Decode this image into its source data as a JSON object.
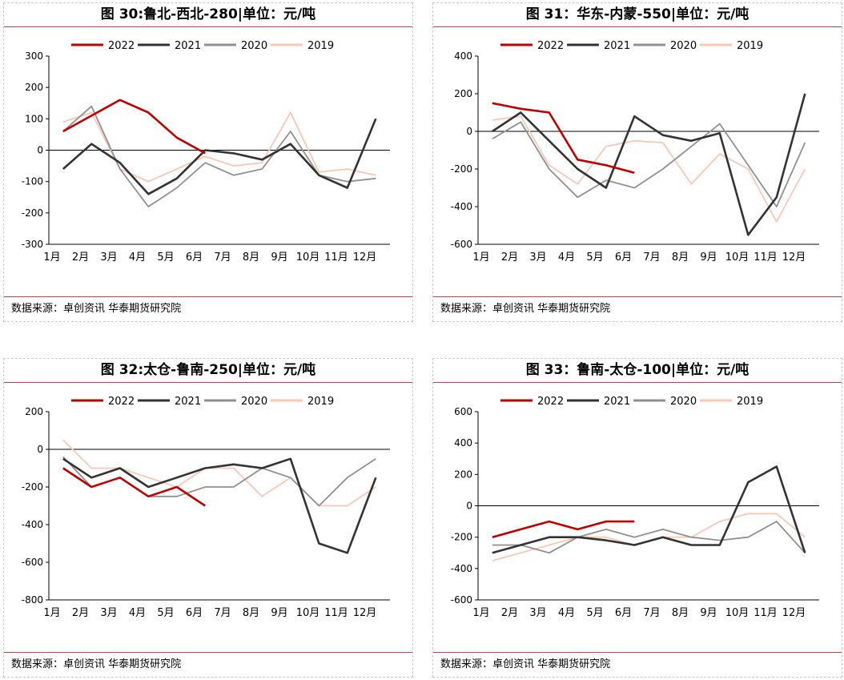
{
  "colors": {
    "2022": "#c00000",
    "2021": "#333333",
    "2020": "#909090",
    "2019": "#f8c8b4"
  },
  "months": [
    "1月",
    "2月",
    "3月",
    "4月",
    "5月",
    "6月",
    "7月",
    "8月",
    "9月",
    "10月",
    "11月",
    "12月"
  ],
  "panels": [
    {
      "title": "图 30:鲁北-西北-280|单位：元/吨",
      "source": "数据来源：卓创资讯  华泰期货研究院",
      "chart_data": {
        "type": "line",
        "x": [
          "1月",
          "2月",
          "3月",
          "4月",
          "5月",
          "6月",
          "7月",
          "8月",
          "9月",
          "10月",
          "11月",
          "12月"
        ],
        "ylim": [
          -300,
          300
        ],
        "yticks": [
          -300,
          -200,
          -100,
          0,
          100,
          200,
          300
        ],
        "series": [
          {
            "name": "2022",
            "values": [
              60,
              110,
              160,
              120,
              40,
              -10,
              null,
              null,
              null,
              null,
              null,
              null
            ]
          },
          {
            "name": "2021",
            "values": [
              -60,
              20,
              -40,
              -140,
              -90,
              0,
              -10,
              -30,
              20,
              -80,
              -120,
              100
            ]
          },
          {
            "name": "2020",
            "values": [
              60,
              140,
              -60,
              -180,
              -120,
              -40,
              -80,
              -60,
              60,
              -80,
              -100,
              -90
            ]
          },
          {
            "name": "2019",
            "values": [
              90,
              120,
              -60,
              -100,
              -60,
              -20,
              -50,
              -40,
              120,
              -70,
              -60,
              -80
            ]
          }
        ]
      }
    },
    {
      "title": "图 31：华东-内蒙-550|单位：元/吨",
      "source": "数据来源：卓创资讯  华泰期货研究院",
      "chart_data": {
        "type": "line",
        "x": [
          "1月",
          "2月",
          "3月",
          "4月",
          "5月",
          "6月",
          "7月",
          "8月",
          "9月",
          "10月",
          "11月",
          "12月"
        ],
        "ylim": [
          -600,
          400
        ],
        "yticks": [
          -600,
          -400,
          -200,
          0,
          200,
          400
        ],
        "series": [
          {
            "name": "2022",
            "values": [
              150,
              120,
              100,
              -150,
              -180,
              -220,
              null,
              null,
              null,
              null,
              null,
              null
            ]
          },
          {
            "name": "2021",
            "values": [
              0,
              100,
              -50,
              -200,
              -300,
              80,
              -20,
              -50,
              -10,
              -550,
              -350,
              200
            ]
          },
          {
            "name": "2020",
            "values": [
              -40,
              50,
              -200,
              -350,
              -260,
              -300,
              -200,
              -80,
              40,
              -180,
              -400,
              -60
            ]
          },
          {
            "name": "2019",
            "values": [
              60,
              80,
              -180,
              -280,
              -80,
              -50,
              -60,
              -280,
              -120,
              -200,
              -480,
              -200
            ]
          }
        ]
      }
    },
    {
      "title": "图 32:太仓-鲁南-250|单位：元/吨",
      "source": "数据来源：卓创资讯  华泰期货研究院",
      "chart_data": {
        "type": "line",
        "x": [
          "1月",
          "2月",
          "3月",
          "4月",
          "5月",
          "6月",
          "7月",
          "8月",
          "9月",
          "10月",
          "11月",
          "12月"
        ],
        "ylim": [
          -800,
          200
        ],
        "yticks": [
          -800,
          -600,
          -400,
          -200,
          0,
          200
        ],
        "series": [
          {
            "name": "2022",
            "values": [
              -100,
              -200,
              -150,
              -250,
              -200,
              -300,
              null,
              null,
              null,
              null,
              null,
              null
            ]
          },
          {
            "name": "2021",
            "values": [
              -50,
              -150,
              -100,
              -200,
              -150,
              -100,
              -80,
              -100,
              -50,
              -500,
              -550,
              -150
            ]
          },
          {
            "name": "2020",
            "values": [
              -40,
              -200,
              -150,
              -250,
              -250,
              -200,
              -200,
              -100,
              -150,
              -300,
              -150,
              -50
            ]
          },
          {
            "name": "2019",
            "values": [
              50,
              -100,
              -100,
              -150,
              -200,
              -100,
              -100,
              -250,
              -150,
              -300,
              -300,
              -200
            ]
          }
        ]
      }
    },
    {
      "title": "图 33：鲁南-太仓-100|单位：元/吨",
      "source": "数据来源：卓创资讯  华泰期货研究院",
      "chart_data": {
        "type": "line",
        "x": [
          "1月",
          "2月",
          "3月",
          "4月",
          "5月",
          "6月",
          "7月",
          "8月",
          "9月",
          "10月",
          "11月",
          "12月"
        ],
        "ylim": [
          -600,
          600
        ],
        "yticks": [
          -600,
          -400,
          -200,
          0,
          200,
          400,
          600
        ],
        "series": [
          {
            "name": "2022",
            "values": [
              -200,
              -150,
              -100,
              -150,
              -100,
              -100,
              null,
              null,
              null,
              null,
              null,
              null
            ]
          },
          {
            "name": "2021",
            "values": [
              -300,
              -250,
              -200,
              -200,
              -220,
              -250,
              -200,
              -250,
              -250,
              150,
              250,
              -300
            ]
          },
          {
            "name": "2020",
            "values": [
              -250,
              -250,
              -300,
              -200,
              -150,
              -200,
              -150,
              -200,
              -220,
              -200,
              -100,
              -300
            ]
          },
          {
            "name": "2019",
            "values": [
              -350,
              -300,
              -250,
              -200,
              -200,
              -250,
              -200,
              -200,
              -100,
              -50,
              -50,
              -200
            ]
          }
        ]
      }
    }
  ]
}
